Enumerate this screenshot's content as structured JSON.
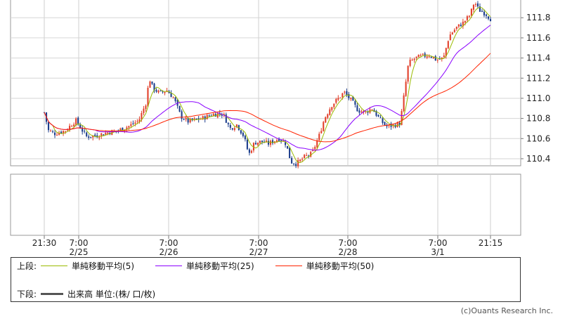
{
  "chart_data": {
    "type": "candlestick",
    "y_ticks": [
      "111.8",
      "111.6",
      "111.4",
      "111.2",
      "111.0",
      "110.8",
      "110.6",
      "110.4"
    ],
    "y_tick_values": [
      111.8,
      111.6,
      111.4,
      111.2,
      111.0,
      110.8,
      110.6,
      110.4
    ],
    "ylim": [
      110.33,
      111.99
    ],
    "x_ticks": [
      {
        "time": "21:30",
        "date": ""
      },
      {
        "time": "7:00",
        "date": "2/25"
      },
      {
        "time": "7:00",
        "date": "2/26"
      },
      {
        "time": "7:00",
        "date": "2/27"
      },
      {
        "time": "7:00",
        "date": "2/28"
      },
      {
        "time": "7:00",
        "date": "3/1"
      },
      {
        "time": "21:15",
        "date": ""
      }
    ],
    "price_path": [
      [
        0,
        110.86
      ],
      [
        6,
        110.68
      ],
      [
        15,
        110.65
      ],
      [
        30,
        110.68
      ],
      [
        45,
        110.78
      ],
      [
        60,
        110.62
      ],
      [
        75,
        110.63
      ],
      [
        90,
        110.66
      ],
      [
        105,
        110.68
      ],
      [
        120,
        110.72
      ],
      [
        135,
        110.78
      ],
      [
        145,
        110.95
      ],
      [
        150,
        111.2
      ],
      [
        155,
        111.1
      ],
      [
        165,
        111.05
      ],
      [
        175,
        111.08
      ],
      [
        185,
        111.0
      ],
      [
        195,
        110.82
      ],
      [
        205,
        110.77
      ],
      [
        225,
        110.8
      ],
      [
        240,
        110.84
      ],
      [
        255,
        110.85
      ],
      [
        265,
        110.7
      ],
      [
        275,
        110.74
      ],
      [
        285,
        110.62
      ],
      [
        292,
        110.44
      ],
      [
        300,
        110.56
      ],
      [
        310,
        110.57
      ],
      [
        320,
        110.55
      ],
      [
        335,
        110.6
      ],
      [
        345,
        110.55
      ],
      [
        352,
        110.37
      ],
      [
        360,
        110.35
      ],
      [
        372,
        110.42
      ],
      [
        382,
        110.45
      ],
      [
        392,
        110.62
      ],
      [
        400,
        110.8
      ],
      [
        410,
        110.93
      ],
      [
        420,
        111.0
      ],
      [
        428,
        111.06
      ],
      [
        438,
        110.98
      ],
      [
        448,
        110.88
      ],
      [
        458,
        110.86
      ],
      [
        468,
        110.9
      ],
      [
        478,
        110.8
      ],
      [
        488,
        110.72
      ],
      [
        498,
        110.73
      ],
      [
        508,
        110.75
      ],
      [
        515,
        111.1
      ],
      [
        520,
        111.35
      ],
      [
        530,
        111.4
      ],
      [
        540,
        111.42
      ],
      [
        550,
        111.43
      ],
      [
        560,
        111.38
      ],
      [
        570,
        111.4
      ],
      [
        578,
        111.62
      ],
      [
        588,
        111.7
      ],
      [
        598,
        111.75
      ],
      [
        608,
        111.83
      ],
      [
        614,
        111.96
      ],
      [
        620,
        111.88
      ],
      [
        630,
        111.84
      ],
      [
        637,
        111.79
      ]
    ],
    "series": [
      {
        "name": "単純移動平均(5)",
        "color": "#99bb00",
        "period": 5
      },
      {
        "name": "単純移動平均(25)",
        "color": "#8a00ff",
        "period": 25
      },
      {
        "name": "単純移動平均(50)",
        "color": "#ff2200",
        "period": 50
      }
    ],
    "up_color": "#e2402b",
    "down_color": "#1d3e8c",
    "grid": true
  },
  "legend": {
    "upper_label": "上段:",
    "lower_label": "下段:",
    "volume_label": "出来高 単位:(株/ 口/枚)",
    "volume_color": "#555555"
  },
  "credit": "(c)Ouants Research Inc."
}
